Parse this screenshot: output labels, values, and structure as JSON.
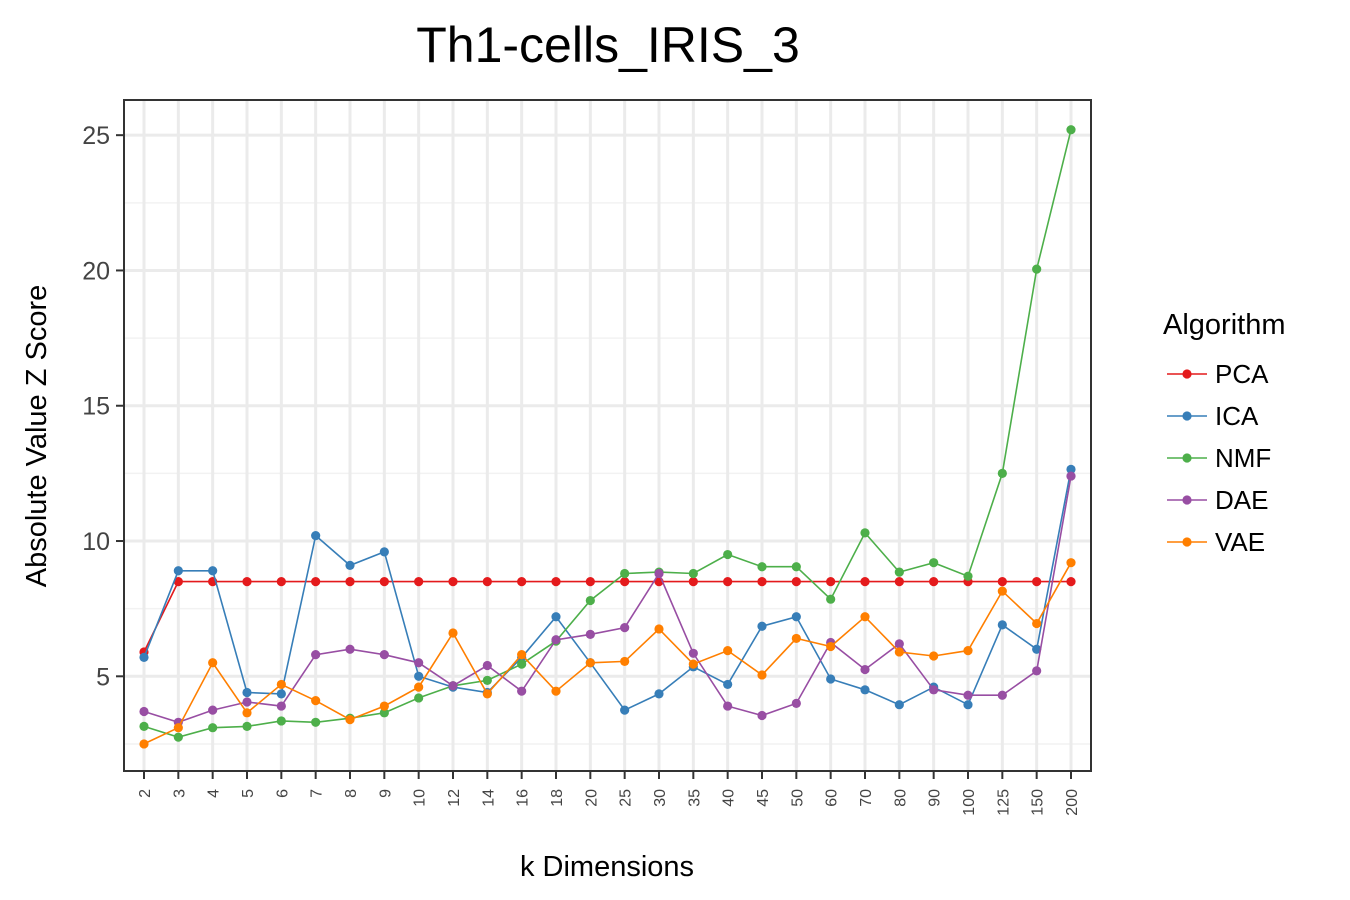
{
  "chart_data": {
    "type": "line",
    "title": "Th1-cells_IRIS_3",
    "xlabel": "k Dimensions",
    "ylabel": "Absolute Value Z Score",
    "categories": [
      "2",
      "3",
      "4",
      "5",
      "6",
      "7",
      "8",
      "9",
      "10",
      "12",
      "14",
      "16",
      "18",
      "20",
      "25",
      "30",
      "35",
      "40",
      "45",
      "50",
      "60",
      "70",
      "80",
      "90",
      "100",
      "125",
      "150",
      "200"
    ],
    "y_ticks": [
      5,
      10,
      15,
      20,
      25
    ],
    "ylim": [
      1.5,
      26.3
    ],
    "grid": true,
    "legend": {
      "title": "Algorithm",
      "placement": "right"
    },
    "series": [
      {
        "name": "PCA",
        "color": "#e41a1c",
        "values": [
          5.9,
          8.5,
          8.5,
          8.5,
          8.5,
          8.5,
          8.5,
          8.5,
          8.5,
          8.5,
          8.5,
          8.5,
          8.5,
          8.5,
          8.5,
          8.5,
          8.5,
          8.5,
          8.5,
          8.5,
          8.5,
          8.5,
          8.5,
          8.5,
          8.5,
          8.5,
          8.5,
          8.5
        ]
      },
      {
        "name": "ICA",
        "color": "#377eb8",
        "values": [
          5.7,
          8.9,
          8.9,
          4.4,
          4.35,
          10.2,
          9.1,
          9.6,
          5.0,
          4.6,
          4.4,
          5.7,
          7.2,
          5.5,
          3.75,
          4.35,
          5.35,
          4.7,
          6.85,
          7.2,
          4.9,
          4.5,
          3.95,
          4.6,
          3.95,
          6.9,
          6.0,
          12.65
        ]
      },
      {
        "name": "NMF",
        "color": "#4daf4a",
        "values": [
          3.15,
          2.75,
          3.1,
          3.15,
          3.35,
          3.3,
          3.45,
          3.65,
          4.2,
          4.65,
          4.85,
          5.45,
          6.3,
          7.8,
          8.8,
          8.85,
          8.8,
          9.5,
          9.05,
          9.05,
          7.85,
          10.3,
          8.85,
          9.2,
          8.7,
          12.5,
          20.05,
          25.2
        ]
      },
      {
        "name": "DAE",
        "color": "#984ea3",
        "values": [
          3.7,
          3.3,
          3.75,
          4.05,
          3.9,
          5.8,
          6.0,
          5.8,
          5.5,
          4.65,
          5.4,
          4.45,
          6.35,
          6.55,
          6.8,
          8.8,
          5.85,
          3.9,
          3.55,
          4.0,
          6.25,
          5.25,
          6.2,
          4.5,
          4.3,
          4.3,
          5.2,
          12.4
        ]
      },
      {
        "name": "VAE",
        "color": "#ff7f00",
        "values": [
          2.5,
          3.1,
          5.5,
          3.65,
          4.7,
          4.1,
          3.4,
          3.9,
          4.6,
          6.6,
          4.35,
          5.8,
          4.45,
          5.5,
          5.55,
          6.75,
          5.45,
          5.95,
          5.05,
          6.4,
          6.1,
          7.2,
          5.9,
          5.75,
          5.95,
          8.15,
          6.95,
          9.2
        ]
      }
    ]
  }
}
